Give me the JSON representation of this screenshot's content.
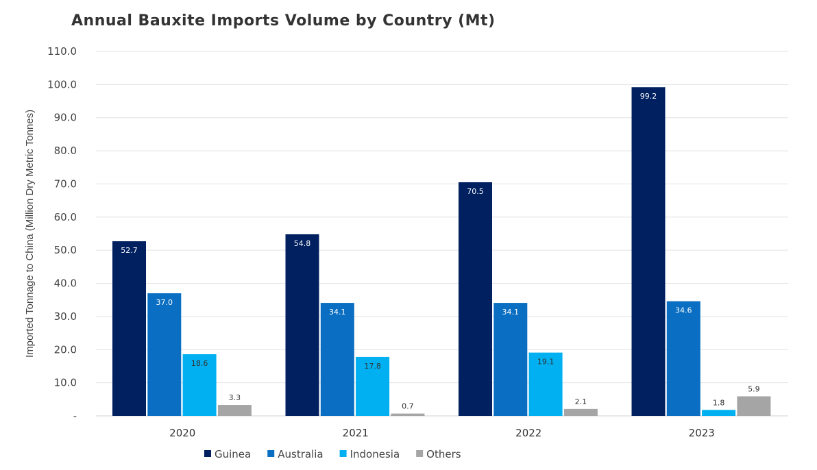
{
  "chart_data": {
    "type": "bar",
    "title": "Annual Bauxite Imports Volume by Country (Mt)",
    "xlabel": "",
    "ylabel": "Imported Tonnage to China (Million Dry Metric Tonnes)",
    "categories": [
      "2020",
      "2021",
      "2022",
      "2023"
    ],
    "series": [
      {
        "name": "Guinea",
        "color": "#002060",
        "values": [
          52.7,
          54.8,
          70.5,
          99.2
        ]
      },
      {
        "name": "Australia",
        "color": "#0A6FC2",
        "values": [
          37.0,
          34.1,
          34.1,
          34.6
        ]
      },
      {
        "name": "Indonesia",
        "color": "#00B0F0",
        "values": [
          18.6,
          17.8,
          19.1,
          1.8
        ]
      },
      {
        "name": "Others",
        "color": "#A5A5A5",
        "values": [
          3.3,
          0.7,
          2.1,
          5.9
        ]
      }
    ],
    "ylim": [
      0,
      110
    ],
    "yticks": [
      "-",
      "10.0",
      "20.0",
      "30.0",
      "40.0",
      "50.0",
      "60.0",
      "70.0",
      "80.0",
      "90.0",
      "100.0",
      "110.0"
    ],
    "grid": true,
    "legend": "bottom"
  }
}
